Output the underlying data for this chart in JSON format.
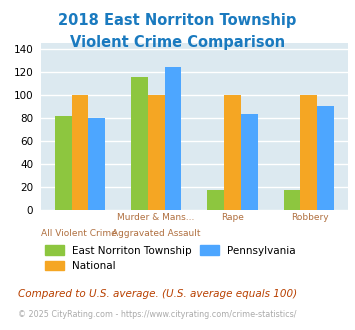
{
  "title_line1": "2018 East Norriton Township",
  "title_line2": "Violent Crime Comparison",
  "title_color": "#1a7abf",
  "cat_labels_row1": [
    "",
    "Murder & Mans...",
    "Rape",
    "Robbery"
  ],
  "cat_labels_row2": [
    "All Violent Crime",
    "Aggravated Assault",
    "",
    ""
  ],
  "series": {
    "East Norriton Township": [
      81,
      115,
      17,
      17
    ],
    "National": [
      100,
      100,
      100,
      100
    ],
    "Pennsylvania": [
      80,
      124,
      83,
      90
    ]
  },
  "colors": {
    "East Norriton Township": "#8dc63f",
    "National": "#f5a623",
    "Pennsylvania": "#4da6ff"
  },
  "ylim": [
    0,
    145
  ],
  "yticks": [
    0,
    20,
    40,
    60,
    80,
    100,
    120,
    140
  ],
  "bg_color": "#dce9f0",
  "grid_color": "#ffffff",
  "footnote1": "Compared to U.S. average. (U.S. average equals 100)",
  "footnote2": "© 2025 CityRating.com - https://www.cityrating.com/crime-statistics/",
  "footnote1_color": "#b84000",
  "footnote2_color": "#aaaaaa",
  "label_color": "#b07040"
}
